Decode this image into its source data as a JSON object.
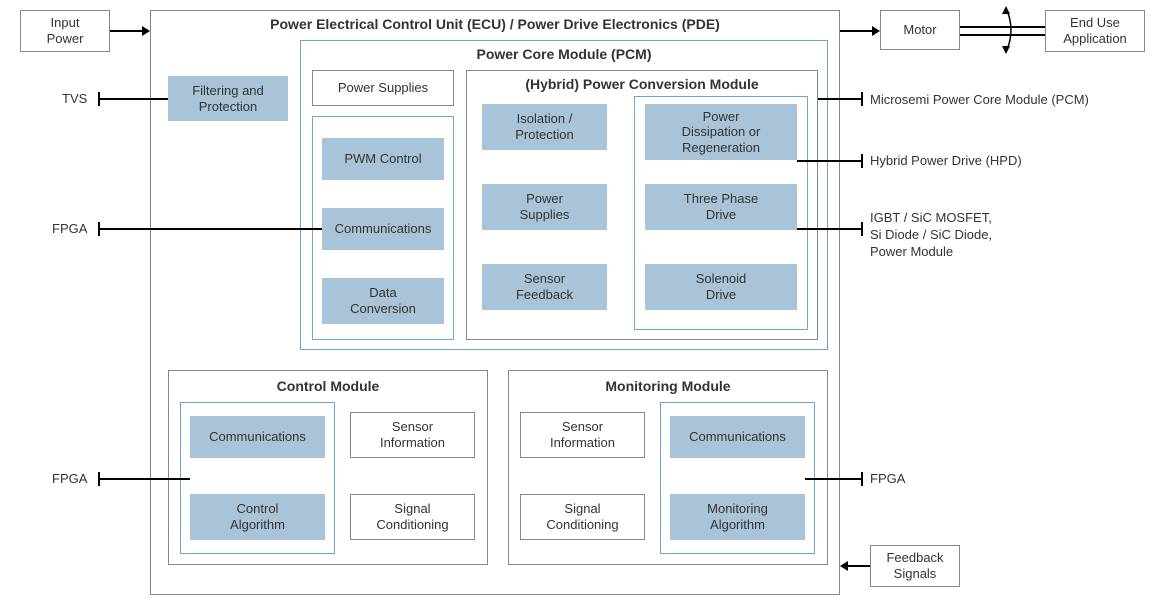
{
  "type": "block-diagram",
  "colors": {
    "fill_blue": "#a9c4d9",
    "border_blue": "#6aa7d6",
    "border_gray": "#888888",
    "text": "#333333",
    "bg": "#ffffff",
    "line": "#000000"
  },
  "external": {
    "input_power": "Input\nPower",
    "motor": "Motor",
    "end_use": "End Use\nApplication"
  },
  "main_title": "Power Electrical Control Unit (ECU) / Power Drive Electronics (PDE)",
  "filtering": "Filtering and\nProtection",
  "pcm": {
    "title": "Power Core Module (PCM)",
    "power_supplies": "Power Supplies",
    "left_col": {
      "pwm": "PWM Control",
      "comms": "Communications",
      "data_conv": "Data\nConversion"
    },
    "hpcm": {
      "title": "(Hybrid) Power Conversion Module",
      "left": {
        "isolation": "Isolation /\nProtection",
        "power_supplies": "Power\nSupplies",
        "sensor_feedback": "Sensor\nFeedback"
      },
      "right": {
        "dissipation": "Power\nDissipation or\nRegeneration",
        "three_phase": "Three Phase\nDrive",
        "solenoid": "Solenoid\nDrive"
      }
    }
  },
  "control_module": {
    "title": "Control Module",
    "comms": "Communications",
    "control_alg": "Control\nAlgorithm",
    "sensor_info": "Sensor\nInformation",
    "signal_cond": "Signal\nConditioning"
  },
  "monitoring_module": {
    "title": "Monitoring Module",
    "sensor_info": "Sensor\nInformation",
    "signal_cond": "Signal\nConditioning",
    "comms": "Communications",
    "mon_alg": "Monitoring\nAlgorithm"
  },
  "side_labels": {
    "tvs": "TVS",
    "fpga1": "FPGA",
    "fpga2": "FPGA",
    "pcm_label": "Microsemi Power Core Module (PCM)",
    "hpd_label": "Hybrid Power Drive (HPD)",
    "igbt_label": "IGBT / SiC MOSFET,\nSi Diode / SiC Diode,\nPower Module",
    "fpga3": "FPGA",
    "feedback": "Feedback\nSignals"
  }
}
